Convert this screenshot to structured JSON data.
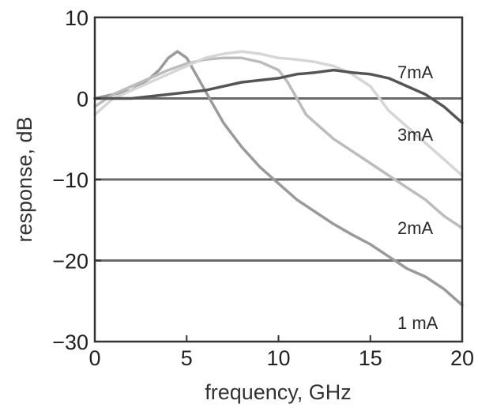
{
  "chart_data": {
    "type": "line",
    "title": "",
    "xlabel": "frequency, GHz",
    "ylabel": "response, dB",
    "xlim": [
      0,
      20
    ],
    "ylim": [
      -30,
      10
    ],
    "xticks": [
      0,
      5,
      10,
      15,
      20
    ],
    "yticks": [
      10,
      0,
      -10,
      -20,
      -30
    ],
    "ytick_labels": [
      "10",
      "0",
      "−10",
      "−20",
      "−30"
    ],
    "horizontal_gridlines": [
      0,
      -10,
      -20
    ],
    "series": [
      {
        "name": "1 mA",
        "color": "#9a9a9a",
        "x": [
          0,
          1,
          2,
          3,
          3.5,
          4,
          4.5,
          5,
          5.5,
          6,
          6.5,
          7,
          8,
          9,
          10,
          11,
          12,
          13,
          14,
          15,
          16,
          17,
          18,
          19,
          20
        ],
        "y": [
          0,
          0.5,
          1,
          2.5,
          3.5,
          5,
          5.8,
          5,
          3,
          1,
          -1,
          -3,
          -6,
          -8.5,
          -10.5,
          -12.5,
          -14,
          -15.5,
          -16.8,
          -18,
          -19.5,
          -21,
          -22,
          -23.5,
          -25.5
        ]
      },
      {
        "name": "2mA",
        "color": "#bcbcbc",
        "x": [
          0,
          1,
          2,
          3,
          4,
          5,
          6,
          7,
          8,
          9,
          10,
          10.5,
          11,
          11.5,
          12,
          13,
          14,
          15,
          16,
          17,
          18,
          19,
          20
        ],
        "y": [
          -1,
          0.5,
          1.5,
          2.5,
          3.5,
          4.3,
          4.8,
          5,
          5,
          4.5,
          3.5,
          2,
          0,
          -2,
          -3,
          -5,
          -6.5,
          -8,
          -9.5,
          -11,
          -12.5,
          -14.5,
          -16
        ]
      },
      {
        "name": "3mA",
        "color": "#d6d6d6",
        "x": [
          0,
          1,
          2,
          3,
          4,
          5,
          6,
          7,
          8,
          9,
          10,
          11,
          12,
          13,
          14,
          15,
          15.5,
          16,
          17,
          18,
          19,
          20
        ],
        "y": [
          -2,
          0,
          1,
          2,
          3,
          4,
          5,
          5.5,
          5.8,
          5.5,
          5,
          4.8,
          4.5,
          4,
          3,
          1.5,
          0,
          -1.5,
          -3.5,
          -5.5,
          -7.5,
          -9.5
        ]
      },
      {
        "name": "7mA",
        "color": "#555555",
        "x": [
          0,
          2,
          4,
          6,
          8,
          10,
          11,
          12,
          13,
          14,
          15,
          16,
          17,
          18,
          19,
          20
        ],
        "y": [
          0,
          0,
          0.5,
          1,
          2,
          2.5,
          3,
          3.2,
          3.5,
          3.2,
          3,
          2.5,
          1.5,
          0.5,
          -1,
          -3
        ]
      }
    ]
  }
}
